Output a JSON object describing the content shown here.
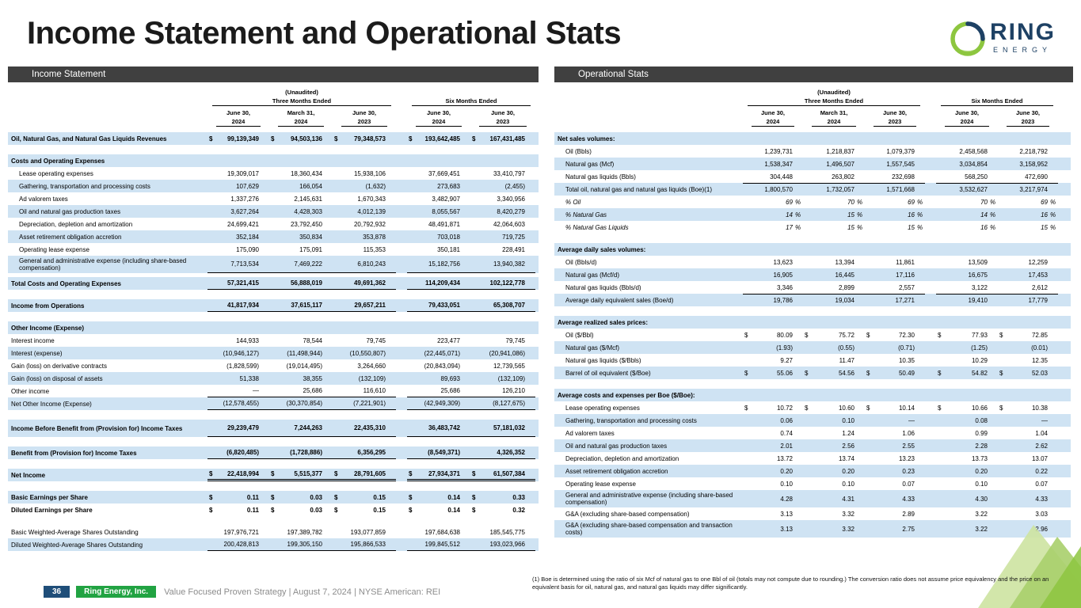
{
  "title": "Income Statement and Operational Stats",
  "logo": {
    "name": "RING",
    "subtitle": "ENERGY"
  },
  "colors": {
    "accent_green": "#8dc63f",
    "navy": "#1e4164",
    "bar_gray": "#404040",
    "row_blue": "#cfe3f3",
    "footer_green": "#21a342",
    "footer_blue": "#1f4e79"
  },
  "period_header": {
    "unaudited": "(Unaudited)",
    "three_months": "Three Months Ended",
    "six_months": "Six Months Ended",
    "dates": [
      "June 30,",
      "March 31,",
      "June 30,",
      "June 30,",
      "June 30,"
    ],
    "years": [
      "2024",
      "2024",
      "2023",
      "2024",
      "2023"
    ]
  },
  "income_statement": {
    "section_title": "Income Statement",
    "rows": [
      {
        "label": "Oil, Natural Gas, and Natural Gas Liquids Revenues",
        "values": [
          "99,139,349",
          "94,503,136",
          "79,348,573",
          "193,642,485",
          "167,431,485"
        ],
        "bold": true,
        "dollar": true,
        "shaded": true
      },
      {
        "spacer": true
      },
      {
        "label": "Costs and Operating Expenses",
        "values": [
          "",
          "",
          "",
          "",
          ""
        ],
        "bold": true,
        "shaded": true
      },
      {
        "label": "Lease operating expenses",
        "values": [
          "19,309,017",
          "18,360,434",
          "15,938,106",
          "37,669,451",
          "33,410,797"
        ],
        "indent": 1
      },
      {
        "label": "Gathering, transportation and processing costs",
        "values": [
          "107,629",
          "166,054",
          "(1,632)",
          "273,683",
          "(2,455)"
        ],
        "indent": 1,
        "shaded": true
      },
      {
        "label": "Ad valorem taxes",
        "values": [
          "1,337,276",
          "2,145,631",
          "1,670,343",
          "3,482,907",
          "3,340,956"
        ],
        "indent": 1
      },
      {
        "label": "Oil and natural gas production taxes",
        "values": [
          "3,627,264",
          "4,428,303",
          "4,012,139",
          "8,055,567",
          "8,420,279"
        ],
        "indent": 1,
        "shaded": true
      },
      {
        "label": "Depreciation, depletion and amortization",
        "values": [
          "24,699,421",
          "23,792,450",
          "20,792,932",
          "48,491,871",
          "42,064,603"
        ],
        "indent": 1
      },
      {
        "label": "Asset retirement obligation accretion",
        "values": [
          "352,184",
          "350,834",
          "353,878",
          "703,018",
          "719,725"
        ],
        "indent": 1,
        "shaded": true
      },
      {
        "label": "Operating lease expense",
        "values": [
          "175,090",
          "175,091",
          "115,353",
          "350,181",
          "228,491"
        ],
        "indent": 1
      },
      {
        "label": "General and administrative expense (including share-based compensation)",
        "values": [
          "7,713,534",
          "7,469,222",
          "6,810,243",
          "15,182,756",
          "13,940,382"
        ],
        "indent": 1,
        "shaded": true,
        "tall": true,
        "border_bottom": true
      },
      {
        "spacer": true,
        "small": true
      },
      {
        "label": "Total Costs and Operating Expenses",
        "values": [
          "57,321,415",
          "56,888,019",
          "49,691,362",
          "114,209,434",
          "102,122,778"
        ],
        "bold": true,
        "shaded": true,
        "border_bottom": true
      },
      {
        "spacer": true
      },
      {
        "label": "Income from Operations",
        "values": [
          "41,817,934",
          "37,615,117",
          "29,657,211",
          "79,433,051",
          "65,308,707"
        ],
        "bold": true,
        "shaded": true,
        "border_bottom": true
      },
      {
        "spacer": true
      },
      {
        "label": "Other Income (Expense)",
        "values": [
          "",
          "",
          "",
          "",
          ""
        ],
        "bold": true,
        "shaded": true
      },
      {
        "label": "Interest income",
        "values": [
          "144,933",
          "78,544",
          "79,745",
          "223,477",
          "79,745"
        ]
      },
      {
        "label": "Interest (expense)",
        "values": [
          "(10,946,127)",
          "(11,498,944)",
          "(10,550,807)",
          "(22,445,071)",
          "(20,941,086)"
        ],
        "shaded": true
      },
      {
        "label": "Gain (loss) on derivative contracts",
        "values": [
          "(1,828,599)",
          "(19,014,495)",
          "3,264,660",
          "(20,843,094)",
          "12,739,565"
        ]
      },
      {
        "label": "Gain (loss) on disposal of assets",
        "values": [
          "51,338",
          "38,355",
          "(132,109)",
          "89,693",
          "(132,109)"
        ],
        "shaded": true
      },
      {
        "label": "Other income",
        "values": [
          "—",
          "25,686",
          "116,610",
          "25,686",
          "126,210"
        ],
        "border_bottom": true
      },
      {
        "label": "Net Other Income (Expense)",
        "values": [
          "(12,578,455)",
          "(30,370,854)",
          "(7,221,901)",
          "(42,949,309)",
          "(8,127,675)"
        ],
        "shaded": true,
        "border_bottom": true
      },
      {
        "spacer": true
      },
      {
        "label": "Income Before Benefit from (Provision for) Income Taxes",
        "values": [
          "29,239,479",
          "7,244,263",
          "22,435,310",
          "36,483,742",
          "57,181,032"
        ],
        "bold": true,
        "shaded": true,
        "tall": true,
        "border_bottom": true
      },
      {
        "spacer": true
      },
      {
        "label": "Benefit from (Provision for) Income Taxes",
        "values": [
          "(6,820,485)",
          "(1,728,886)",
          "6,356,295",
          "(8,549,371)",
          "4,326,352"
        ],
        "bold": true,
        "shaded": true,
        "border_bottom": true
      },
      {
        "spacer": true
      },
      {
        "label": "Net Income",
        "values": [
          "22,418,994",
          "5,515,377",
          "28,791,605",
          "27,934,371",
          "61,507,384"
        ],
        "bold": true,
        "dollar": true,
        "shaded": true,
        "double_bottom": true
      },
      {
        "spacer": true
      },
      {
        "label": "Basic Earnings per Share",
        "values": [
          "0.11",
          "0.03",
          "0.15",
          "0.14",
          "0.33"
        ],
        "bold": true,
        "dollar": true,
        "shaded": true
      },
      {
        "label": "Diluted Earnings per Share",
        "values": [
          "0.11",
          "0.03",
          "0.15",
          "0.14",
          "0.32"
        ],
        "bold": true,
        "dollar": true
      },
      {
        "spacer": true
      },
      {
        "label": "Basic Weighted-Average Shares Outstanding",
        "values": [
          "197,976,721",
          "197,389,782",
          "193,077,859",
          "197,684,638",
          "185,545,775"
        ]
      },
      {
        "label": "Diluted Weighted-Average Shares Outstanding",
        "values": [
          "200,428,813",
          "199,305,150",
          "195,866,533",
          "199,845,512",
          "193,023,966"
        ],
        "shaded": true,
        "border_bottom": true
      }
    ]
  },
  "operational_stats": {
    "section_title": "Operational Stats",
    "rows": [
      {
        "label": "Net sales volumes:",
        "values": [
          "",
          "",
          "",
          "",
          ""
        ],
        "bold": true,
        "shaded": true
      },
      {
        "label": "Oil (Bbls)",
        "values": [
          "1,239,731",
          "1,218,837",
          "1,079,379",
          "2,458,568",
          "2,218,792"
        ],
        "indent": 1
      },
      {
        "label": "Natural gas (Mcf)",
        "values": [
          "1,538,347",
          "1,496,507",
          "1,557,545",
          "3,034,854",
          "3,158,952"
        ],
        "indent": 1,
        "shaded": true
      },
      {
        "label": "Natural gas liquids (Bbls)",
        "values": [
          "304,448",
          "263,802",
          "232,698",
          "568,250",
          "472,690"
        ],
        "indent": 1
      },
      {
        "label": "Total oil, natural gas and natural gas liquids (Boe)(1)",
        "values": [
          "1,800,570",
          "1,732,057",
          "1,571,668",
          "3,532,627",
          "3,217,974"
        ],
        "indent": 1,
        "shaded": true,
        "border_top": true
      },
      {
        "label": "% Oil",
        "values": [
          "69",
          "70",
          "69",
          "70",
          "69"
        ],
        "indent": 1,
        "italic": true,
        "percent": true
      },
      {
        "label": "% Natural Gas",
        "values": [
          "14",
          "15",
          "16",
          "14",
          "16"
        ],
        "indent": 1,
        "italic": true,
        "percent": true,
        "shaded": true
      },
      {
        "label": "% Natural Gas Liquids",
        "values": [
          "17",
          "15",
          "15",
          "16",
          "15"
        ],
        "indent": 1,
        "italic": true,
        "percent": true
      },
      {
        "spacer": true
      },
      {
        "label": "Average daily sales volumes:",
        "values": [
          "",
          "",
          "",
          "",
          ""
        ],
        "bold": true,
        "shaded": true
      },
      {
        "label": "Oil (Bbls/d)",
        "values": [
          "13,623",
          "13,394",
          "11,861",
          "13,509",
          "12,259"
        ],
        "indent": 1
      },
      {
        "label": "Natural gas (Mcf/d)",
        "values": [
          "16,905",
          "16,445",
          "17,116",
          "16,675",
          "17,453"
        ],
        "indent": 1,
        "shaded": true
      },
      {
        "label": "Natural gas liquids (Bbls/d)",
        "values": [
          "3,346",
          "2,899",
          "2,557",
          "3,122",
          "2,612"
        ],
        "indent": 1
      },
      {
        "label": "Average daily equivalent sales (Boe/d)",
        "values": [
          "19,786",
          "19,034",
          "17,271",
          "19,410",
          "17,779"
        ],
        "indent": 1,
        "shaded": true,
        "border_top": true
      },
      {
        "spacer": true
      },
      {
        "label": "Average realized sales prices:",
        "values": [
          "",
          "",
          "",
          "",
          ""
        ],
        "bold": true,
        "shaded": true
      },
      {
        "label": "Oil ($/Bbl)",
        "values": [
          "80.09",
          "75.72",
          "72.30",
          "77.93",
          "72.85"
        ],
        "indent": 1,
        "dollar": true
      },
      {
        "label": "Natural gas ($/Mcf)",
        "values": [
          "(1.93)",
          "(0.55)",
          "(0.71)",
          "(1.25)",
          "(0.01)"
        ],
        "indent": 1,
        "shaded": true
      },
      {
        "label": "Natural gas liquids ($/Bbls)",
        "values": [
          "9.27",
          "11.47",
          "10.35",
          "10.29",
          "12.35"
        ],
        "indent": 1
      },
      {
        "label": "Barrel of oil equivalent ($/Boe)",
        "values": [
          "55.06",
          "54.56",
          "50.49",
          "54.82",
          "52.03"
        ],
        "indent": 1,
        "dollar": true,
        "shaded": true
      },
      {
        "spacer": true
      },
      {
        "label": "Average costs and expenses per Boe ($/Boe):",
        "values": [
          "",
          "",
          "",
          "",
          ""
        ],
        "bold": true,
        "shaded": true
      },
      {
        "label": "Lease operating expenses",
        "values": [
          "10.72",
          "10.60",
          "10.14",
          "10.66",
          "10.38"
        ],
        "indent": 1,
        "dollar": true
      },
      {
        "label": "Gathering, transportation and processing costs",
        "values": [
          "0.06",
          "0.10",
          "—",
          "0.08",
          "—"
        ],
        "indent": 1,
        "shaded": true
      },
      {
        "label": "Ad valorem taxes",
        "values": [
          "0.74",
          "1.24",
          "1.06",
          "0.99",
          "1.04"
        ],
        "indent": 1
      },
      {
        "label": "Oil and natural gas production taxes",
        "values": [
          "2.01",
          "2.56",
          "2.55",
          "2.28",
          "2.62"
        ],
        "indent": 1,
        "shaded": true
      },
      {
        "label": "Depreciation, depletion and amortization",
        "values": [
          "13.72",
          "13.74",
          "13.23",
          "13.73",
          "13.07"
        ],
        "indent": 1
      },
      {
        "label": "Asset retirement obligation accretion",
        "values": [
          "0.20",
          "0.20",
          "0.23",
          "0.20",
          "0.22"
        ],
        "indent": 1,
        "shaded": true
      },
      {
        "label": "Operating lease expense",
        "values": [
          "0.10",
          "0.10",
          "0.07",
          "0.10",
          "0.07"
        ],
        "indent": 1
      },
      {
        "label": "General and administrative expense (including share-based compensation)",
        "values": [
          "4.28",
          "4.31",
          "4.33",
          "4.30",
          "4.33"
        ],
        "indent": 1,
        "shaded": true,
        "tall": true
      },
      {
        "label": "G&A (excluding share-based compensation)",
        "values": [
          "3.13",
          "3.32",
          "2.89",
          "3.22",
          "3.03"
        ],
        "indent": 1
      },
      {
        "label": "G&A (excluding share-based compensation and transaction costs)",
        "values": [
          "3.13",
          "3.32",
          "2.75",
          "3.22",
          "2.96"
        ],
        "indent": 1,
        "shaded": true,
        "tall": true
      }
    ]
  },
  "footnote": "(1) Boe is determined using the ratio of six Mcf of natural gas to one Bbl of oil (totals may not compute due to rounding.) The conversion ratio does not assume price equivalency and the price on an equivalent basis for oil, natural gas, and natural gas liquids may differ significantly.",
  "footer": {
    "page": "36",
    "company": "Ring Energy, Inc.",
    "tagline": "Value Focused Proven Strategy | August 7, 2024 | NYSE American: REI"
  }
}
